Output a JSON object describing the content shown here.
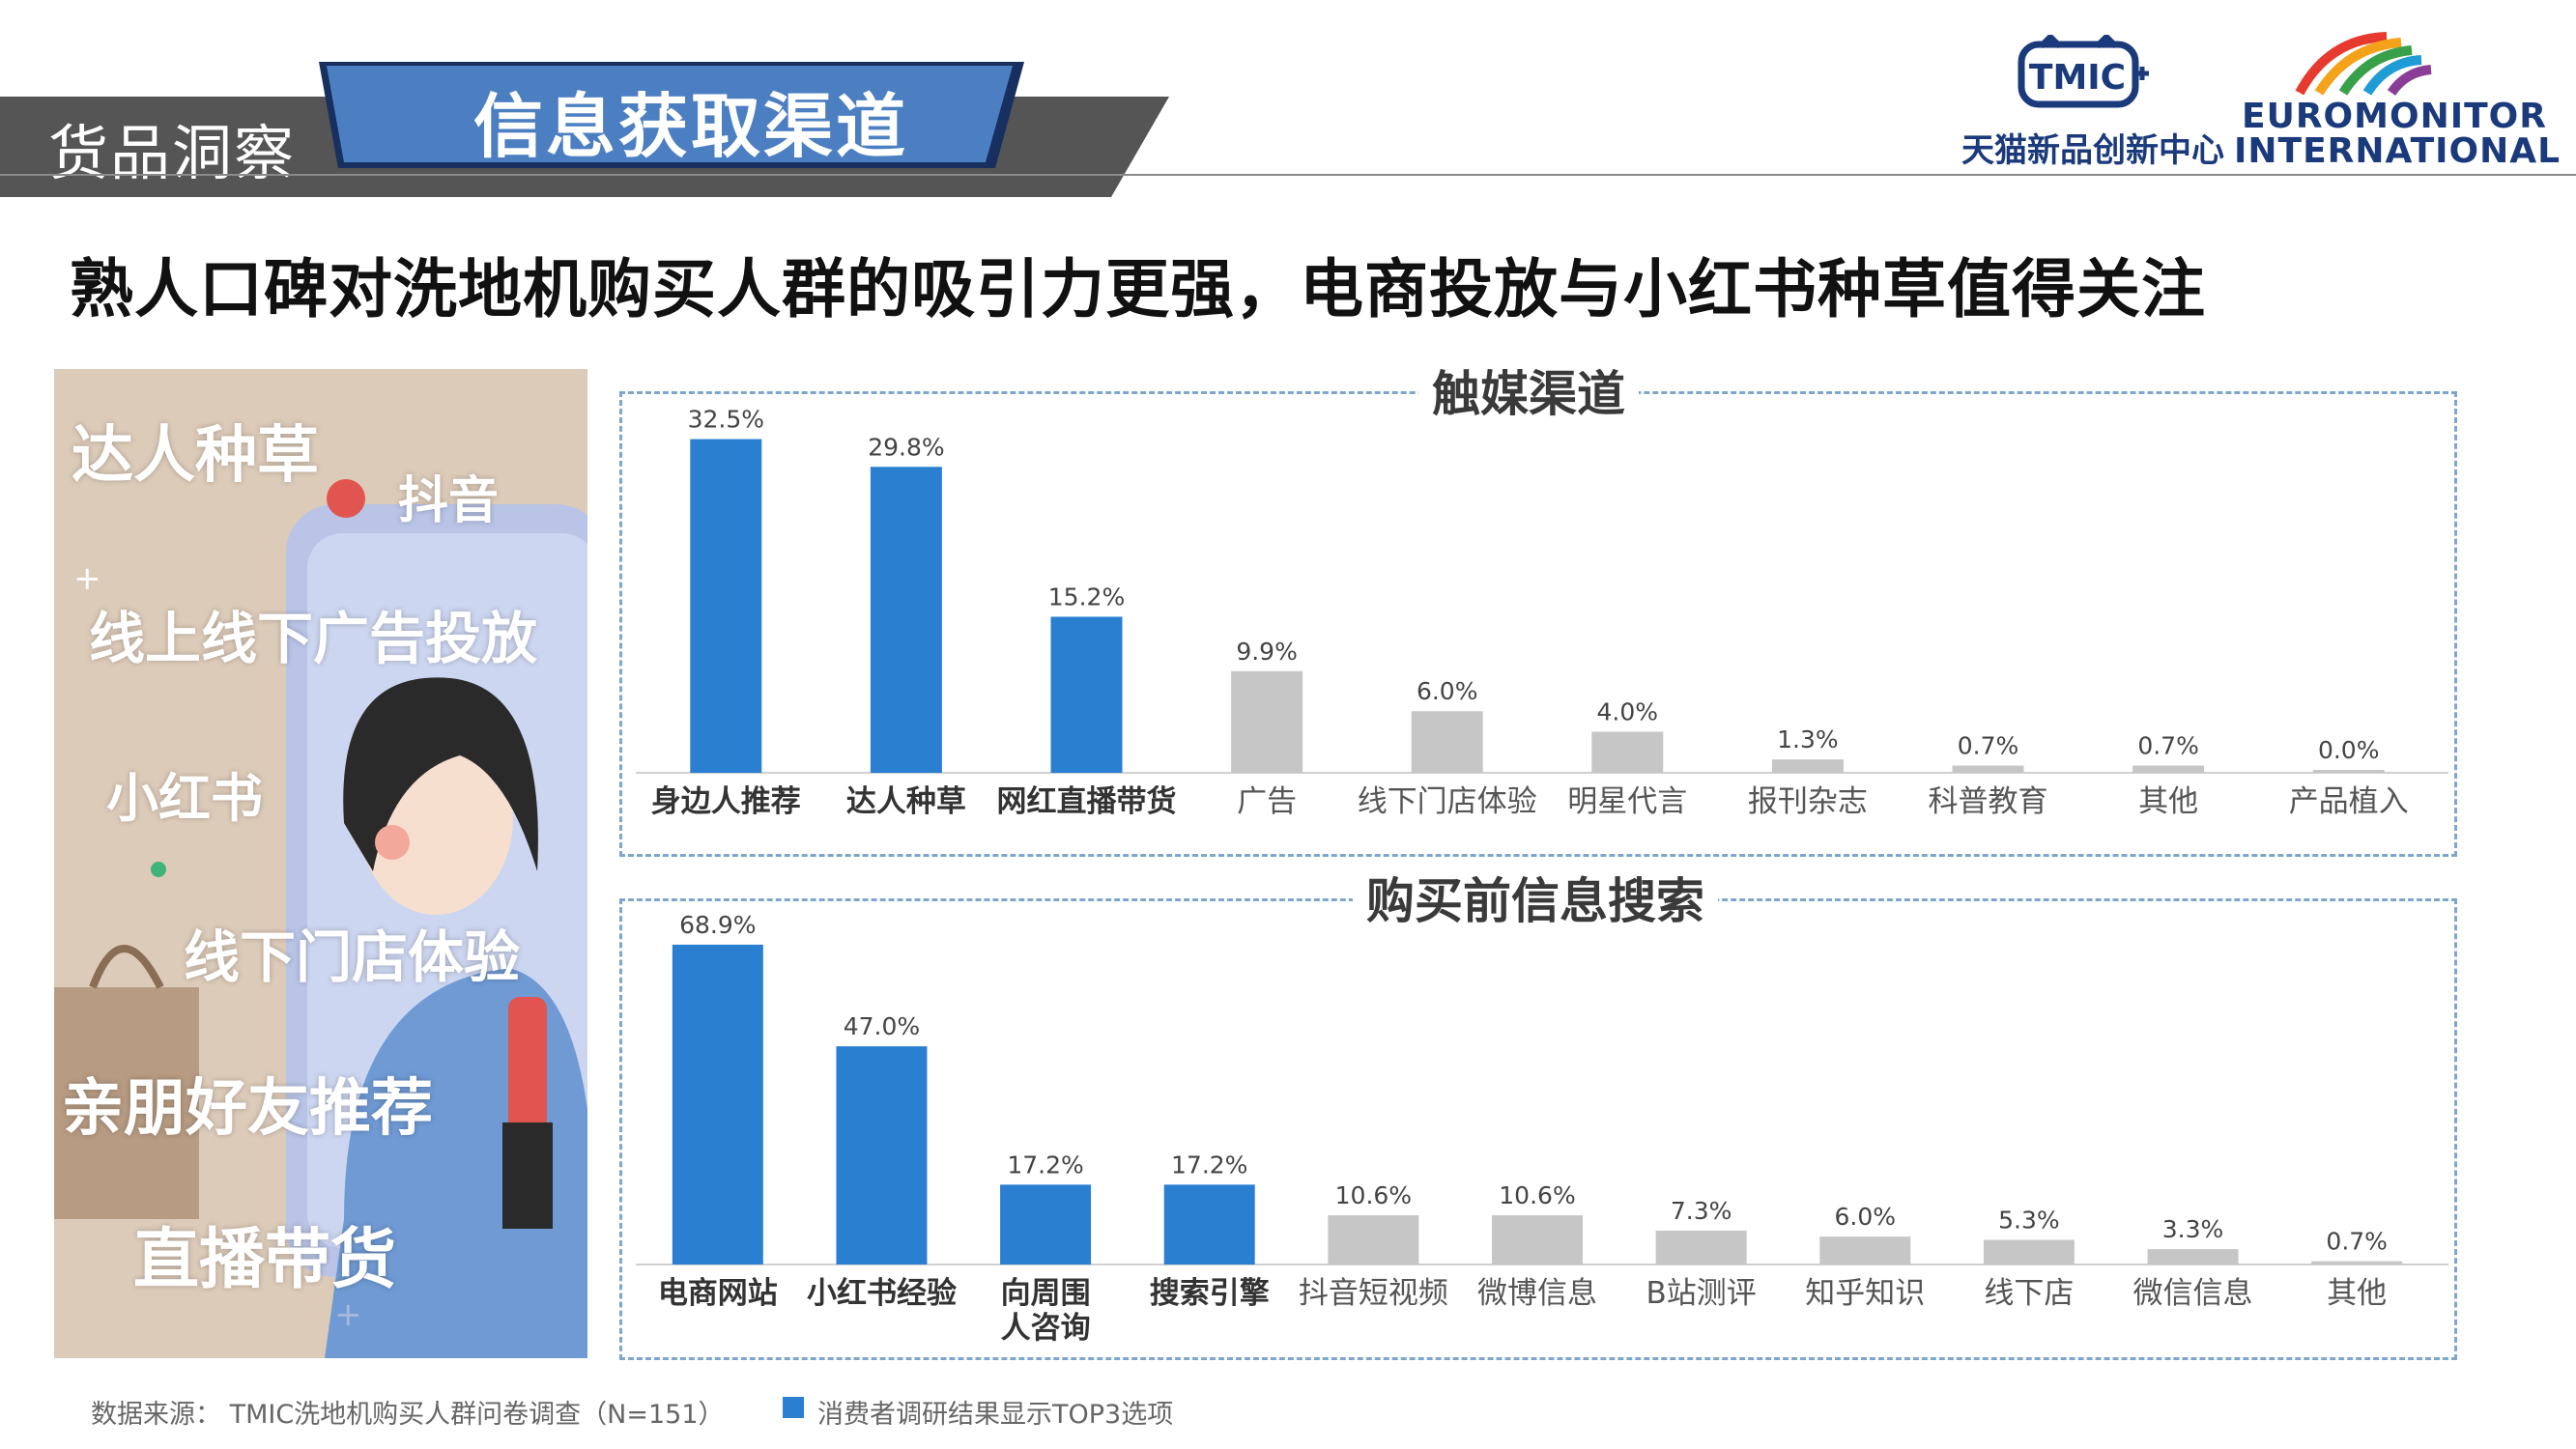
{
  "header": {
    "section_tag": "货品洞察",
    "page_title": "信息获取渠道",
    "headline": "熟人口碑对洗地机购买人群的吸引力更强，电商投放与小红书种草值得关注"
  },
  "logos": {
    "tmic_mark": "TMIC",
    "tmic_cn": "天猫新品创新中心",
    "euromonitor_line1": "EUROMONITOR",
    "euromonitor_line2": "INTERNATIONAL"
  },
  "illustration": {
    "words": [
      "达人种草",
      "抖音",
      "线上线下广告投放",
      "小红书",
      "线下门店体验",
      "亲朋好友推荐",
      "直播带货"
    ]
  },
  "colors": {
    "highlight": "#2a7fd0",
    "normal": "#c6c6c6",
    "frame": "#7ea6cc"
  },
  "chart_data": [
    {
      "type": "bar",
      "title": "触媒渠道",
      "categories": [
        "身边人推荐",
        "达人种草",
        "网红直播带货",
        "广告",
        "线下门店体验",
        "明星代言",
        "报刊杂志",
        "科普教育",
        "其他",
        "产品植入"
      ],
      "values": [
        32.5,
        29.8,
        15.2,
        9.9,
        6.0,
        4.0,
        1.3,
        0.7,
        0.7,
        0.0
      ],
      "value_labels": [
        "32.5%",
        "29.8%",
        "15.2%",
        "9.9%",
        "6.0%",
        "4.0%",
        "1.3%",
        "0.7%",
        "0.7%",
        "0.0%"
      ],
      "highlight": [
        true,
        true,
        true,
        false,
        false,
        false,
        false,
        false,
        false,
        false
      ],
      "unit": "%",
      "ylim": [
        0,
        35
      ]
    },
    {
      "type": "bar",
      "title": "购买前信息搜索",
      "categories": [
        "电商网站",
        "小红书经验",
        "向周围人咨询",
        "搜索引擎",
        "抖音短视频",
        "微博信息",
        "B站测评",
        "知乎知识",
        "线下店",
        "微信信息",
        "其他"
      ],
      "category_lines": [
        [
          "电商网站"
        ],
        [
          "小红书经验"
        ],
        [
          "向周围",
          "人咨询"
        ],
        [
          "搜索引擎"
        ],
        [
          "抖音短视频"
        ],
        [
          "微博信息"
        ],
        [
          "B站测评"
        ],
        [
          "知乎知识"
        ],
        [
          "线下店"
        ],
        [
          "微信信息"
        ],
        [
          "其他"
        ]
      ],
      "values": [
        68.9,
        47.0,
        17.2,
        17.2,
        10.6,
        10.6,
        7.3,
        6.0,
        5.3,
        3.3,
        0.7
      ],
      "value_labels": [
        "68.9%",
        "47.0%",
        "17.2%",
        "17.2%",
        "10.6%",
        "10.6%",
        "7.3%",
        "6.0%",
        "5.3%",
        "3.3%",
        "0.7%"
      ],
      "highlight": [
        true,
        true,
        true,
        true,
        false,
        false,
        false,
        false,
        false,
        false,
        false
      ],
      "unit": "%",
      "ylim": [
        0,
        72
      ]
    }
  ],
  "footer": {
    "source": "数据来源： TMIC洗地机购买人群问卷调查（N=151）",
    "legend": "消费者调研结果显示TOP3选项"
  }
}
